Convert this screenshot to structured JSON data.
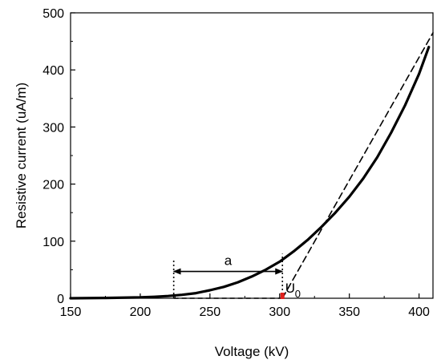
{
  "chart_data": {
    "type": "line",
    "title": "",
    "xlabel": "Voltage (kV)",
    "ylabel": "Resistive current (uA/m)",
    "xlim": [
      150,
      410
    ],
    "ylim": [
      0,
      500
    ],
    "x_ticks": [
      150,
      200,
      250,
      300,
      350,
      400
    ],
    "y_ticks": [
      0,
      100,
      200,
      300,
      400,
      500
    ],
    "x_tick_labels": [
      "150",
      "200",
      "250",
      "300",
      "350",
      "400"
    ],
    "y_tick_labels": [
      "0",
      "100",
      "200",
      "300",
      "400",
      "500"
    ],
    "grid": false,
    "legend": "none",
    "series": [
      {
        "style": "solid",
        "color": "#000000",
        "x": [
          150,
          175,
          200,
          210,
          220,
          230,
          240,
          250,
          260,
          270,
          280,
          290,
          300,
          310,
          320,
          330,
          340,
          350,
          360,
          370,
          380,
          390,
          400,
          407
        ],
        "y": [
          0,
          0.5,
          1.5,
          2.5,
          4,
          6,
          9,
          14,
          20,
          28,
          38,
          50,
          64,
          82,
          102,
          125,
          150,
          178,
          210,
          247,
          290,
          338,
          393,
          440
        ]
      },
      {
        "style": "dashed",
        "color": "#000000",
        "x": [
          302,
          410
        ],
        "y": [
          0,
          465
        ]
      }
    ],
    "annotations": {
      "a_label": "a",
      "u0_label": "U",
      "u0_subscript": "0",
      "a_arrow_x": [
        224,
        302
      ],
      "a_arrow_y": 47,
      "dotted_verticals_x": [
        224,
        302
      ],
      "dotted_top_y": [
        68,
        78
      ],
      "dashed_horizontal_x": [
        224,
        302
      ],
      "marker_x": 302,
      "marker_color": "#e0201c"
    }
  }
}
